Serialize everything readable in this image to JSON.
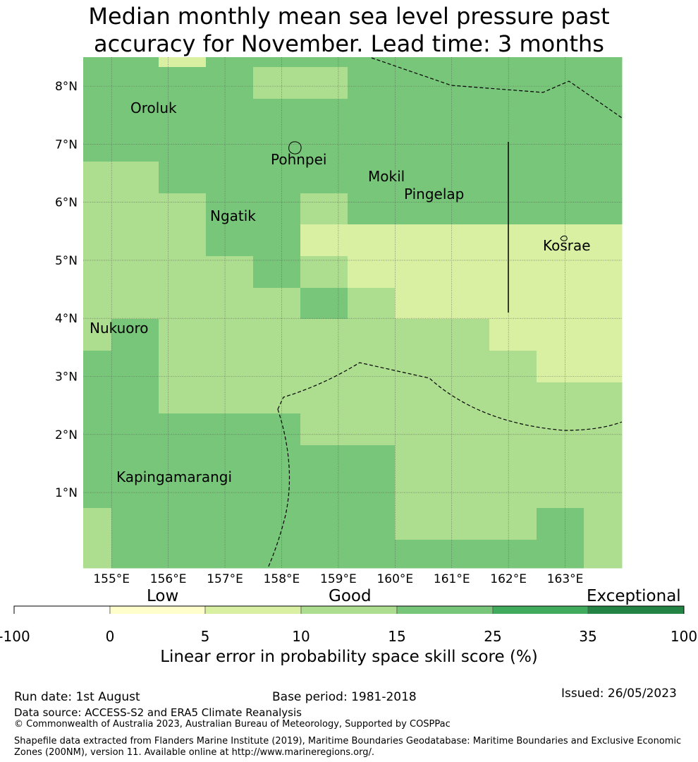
{
  "title": "Median monthly mean sea level pressure past\naccuracy for November. Lead time: 3 months",
  "map": {
    "lon_min": 154.5,
    "lon_max": 164.0,
    "lat_min": -0.3,
    "lat_max": 8.5,
    "lon_ticks": [
      "155°E",
      "156°E",
      "157°E",
      "158°E",
      "159°E",
      "160°E",
      "161°E",
      "162°E",
      "163°E"
    ],
    "lat_ticks": [
      "1°N",
      "2°N",
      "3°N",
      "4°N",
      "5°N",
      "6°N",
      "7°N",
      "8°N"
    ],
    "place_labels": [
      "Oroluk",
      "Pohnpei",
      "Mokil",
      "Pingelap",
      "Ngatik",
      "Kosrae",
      "Nukuoro",
      "Kapingamarangi"
    ]
  },
  "colorbar": {
    "category_labels": [
      "Low",
      "Good",
      "Exceptional"
    ],
    "ticks": [
      "-100",
      "0",
      "5",
      "10",
      "15",
      "25",
      "35",
      "100"
    ],
    "colors": [
      "#ffffff",
      "#ffffcc",
      "#d9f0a3",
      "#addd8e",
      "#78c679",
      "#41ab5d",
      "#238443"
    ],
    "title": "Linear error in probability space skill score (%)"
  },
  "footer": {
    "run_date": "Run date: 1st August",
    "base_period": "Base period: 1981-2018",
    "issued": "Issued: 26/05/2023",
    "data_source": "Data source: ACCESS-S2 and ERA5 Climate Reanalysis",
    "copyright": "© Commonwealth of Australia 2023, Australian Bureau of Meteorology, Supported by COSPPac",
    "shapefile": "Shapefile data extracted from Flanders Marine Institute (2019), Maritime Boundaries Geodatabase: Maritime Boundaries and Exclusive Economic Zones (200NM), version 11. Available online at http://www.marineregions.org/."
  }
}
